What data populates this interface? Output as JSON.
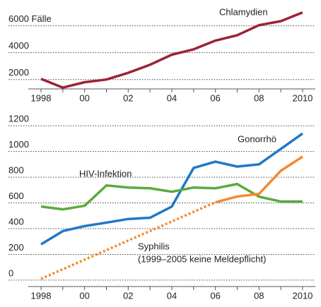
{
  "chart_data": [
    {
      "type": "line",
      "categories": [
        "1998",
        "",
        "00",
        "",
        "02",
        "",
        "04",
        "",
        "06",
        "",
        "08",
        "",
        "2010"
      ],
      "series": [
        {
          "name": "Chlamydien",
          "color": "#9b2335",
          "values": [
            2050,
            1400,
            1800,
            2000,
            2500,
            3100,
            3850,
            4250,
            4900,
            5300,
            6050,
            6350,
            7000
          ]
        }
      ],
      "ylim": [
        1300,
        7400
      ],
      "yticks": [
        2000,
        4000,
        {
          "value": 6000,
          "label": "6000 Fälle"
        }
      ],
      "grid": true
    },
    {
      "type": "line",
      "categories": [
        "1998",
        "",
        "00",
        "",
        "02",
        "",
        "04",
        "",
        "06",
        "",
        "08",
        "",
        "2010"
      ],
      "series": [
        {
          "name": "Gonorrhö",
          "color": "#1f78c8",
          "values": [
            278,
            381,
            420,
            447,
            475,
            485,
            572,
            872,
            921,
            883,
            900,
            1020,
            1140
          ]
        },
        {
          "name": "HIV-Infektion",
          "color": "#5aaa3c",
          "values": [
            572,
            550,
            578,
            736,
            720,
            714,
            687,
            720,
            714,
            747,
            649,
            611,
            611
          ]
        },
        {
          "name": "Syphilis",
          "color": "#f28a2e",
          "values": [
            10,
            null,
            null,
            null,
            null,
            null,
            null,
            null,
            605,
            650,
            670,
            850,
            960
          ]
        }
      ],
      "annotation": "(1999–2005 keine Meldepflicht)",
      "ylim": [
        -50,
        1300
      ],
      "yticks": [
        0,
        200,
        400,
        600,
        800,
        1000,
        1200
      ],
      "grid": true
    }
  ]
}
